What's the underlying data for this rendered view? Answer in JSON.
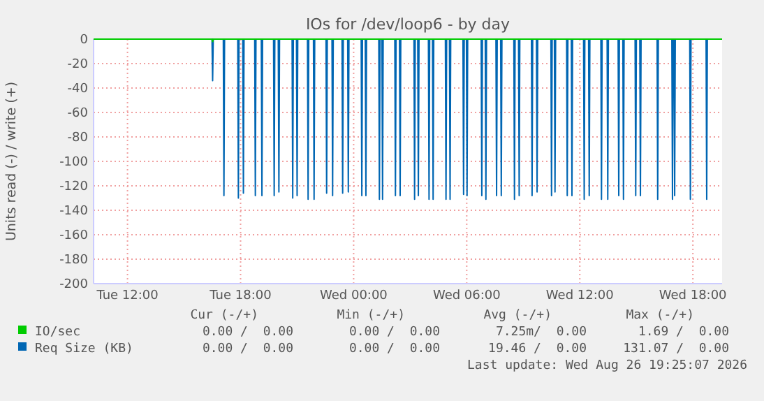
{
  "chart_data": {
    "type": "line",
    "title": "IOs for /dev/loop6 - by day",
    "ylabel": "Units read (-) / write (+)",
    "xlim": [
      "2026-08-25T10:12",
      "2026-08-26T19:33"
    ],
    "xticks": [
      {
        "value": "2026-08-25T12:00",
        "label": "Tue 12:00"
      },
      {
        "value": "2026-08-25T18:00",
        "label": "Tue 18:00"
      },
      {
        "value": "2026-08-26T00:00",
        "label": "Wed 00:00"
      },
      {
        "value": "2026-08-26T06:00",
        "label": "Wed 06:00"
      },
      {
        "value": "2026-08-26T12:00",
        "label": "Wed 12:00"
      },
      {
        "value": "2026-08-26T18:00",
        "label": "Wed 18:00"
      }
    ],
    "ylim": [
      -200,
      0
    ],
    "yticks": [
      -200,
      -180,
      -160,
      -140,
      -120,
      -100,
      -80,
      -60,
      -40,
      -20,
      0
    ],
    "grid": true,
    "legend": "bottom",
    "series": [
      {
        "name": "IO/sec",
        "color": "#00cc00",
        "x": [
          "2026-08-25T10:12",
          "2026-08-25T16:29",
          "2026-08-25T16:31",
          "2026-08-25T16:33",
          "2026-08-26T19:33"
        ],
        "values": [
          0,
          0,
          -2,
          0,
          0
        ]
      },
      {
        "name": "Req Size (KB)",
        "color": "#0066b3",
        "x": [
          "2026-08-25T10:12",
          "2026-08-25T16:29",
          "2026-08-25T16:31",
          "2026-08-25T16:33",
          "2026-08-25T17:05",
          "2026-08-25T17:07",
          "2026-08-25T17:09",
          "2026-08-25T17:51",
          "2026-08-25T17:53",
          "2026-08-25T17:55",
          "2026-08-25T18:07",
          "2026-08-25T18:09",
          "2026-08-25T18:11",
          "2026-08-25T18:45",
          "2026-08-25T18:47",
          "2026-08-25T18:49",
          "2026-08-25T19:06",
          "2026-08-25T19:08",
          "2026-08-25T19:10",
          "2026-08-25T19:45",
          "2026-08-25T19:47",
          "2026-08-25T19:49",
          "2026-08-25T20:00",
          "2026-08-25T20:02",
          "2026-08-25T20:04",
          "2026-08-25T20:44",
          "2026-08-25T20:46",
          "2026-08-25T20:48",
          "2026-08-25T20:58",
          "2026-08-25T21:00",
          "2026-08-25T21:02",
          "2026-08-25T21:33",
          "2026-08-25T21:35",
          "2026-08-25T21:37",
          "2026-08-25T21:52",
          "2026-08-25T21:54",
          "2026-08-25T21:56",
          "2026-08-25T22:32",
          "2026-08-25T22:34",
          "2026-08-25T22:36",
          "2026-08-25T22:51",
          "2026-08-25T22:53",
          "2026-08-25T22:55",
          "2026-08-25T23:23",
          "2026-08-25T23:25",
          "2026-08-25T23:27",
          "2026-08-25T23:41",
          "2026-08-25T23:43",
          "2026-08-25T23:45",
          "2026-08-26T00:24",
          "2026-08-26T00:26",
          "2026-08-26T00:28",
          "2026-08-26T00:37",
          "2026-08-26T00:39",
          "2026-08-26T00:41",
          "2026-08-26T01:20",
          "2026-08-26T01:22",
          "2026-08-26T01:24",
          "2026-08-26T01:30",
          "2026-08-26T01:32",
          "2026-08-26T01:34",
          "2026-08-26T02:11",
          "2026-08-26T02:13",
          "2026-08-26T02:15",
          "2026-08-26T02:26",
          "2026-08-26T02:28",
          "2026-08-26T02:30",
          "2026-08-26T03:12",
          "2026-08-26T03:14",
          "2026-08-26T03:16",
          "2026-08-26T03:24",
          "2026-08-26T03:26",
          "2026-08-26T03:28",
          "2026-08-26T03:58",
          "2026-08-26T04:00",
          "2026-08-26T04:02",
          "2026-08-26T04:11",
          "2026-08-26T04:13",
          "2026-08-26T04:15",
          "2026-08-26T04:52",
          "2026-08-26T04:54",
          "2026-08-26T04:56",
          "2026-08-26T05:05",
          "2026-08-26T05:07",
          "2026-08-26T05:09",
          "2026-08-26T05:48",
          "2026-08-26T05:50",
          "2026-08-26T05:52",
          "2026-08-26T05:59",
          "2026-08-26T06:01",
          "2026-08-26T06:03",
          "2026-08-26T06:46",
          "2026-08-26T06:48",
          "2026-08-26T06:50",
          "2026-08-26T06:59",
          "2026-08-26T07:01",
          "2026-08-26T07:03",
          "2026-08-26T07:33",
          "2026-08-26T07:35",
          "2026-08-26T07:37",
          "2026-08-26T07:48",
          "2026-08-26T07:50",
          "2026-08-26T07:52",
          "2026-08-26T08:30",
          "2026-08-26T08:32",
          "2026-08-26T08:34",
          "2026-08-26T08:45",
          "2026-08-26T08:47",
          "2026-08-26T08:49",
          "2026-08-26T09:26",
          "2026-08-26T09:28",
          "2026-08-26T09:30",
          "2026-08-26T09:42",
          "2026-08-26T09:44",
          "2026-08-26T09:46",
          "2026-08-26T10:28",
          "2026-08-26T10:30",
          "2026-08-26T10:32",
          "2026-08-26T10:39",
          "2026-08-26T10:41",
          "2026-08-26T10:43",
          "2026-08-26T11:18",
          "2026-08-26T11:20",
          "2026-08-26T11:22",
          "2026-08-26T11:33",
          "2026-08-26T11:35",
          "2026-08-26T11:37",
          "2026-08-26T12:12",
          "2026-08-26T12:14",
          "2026-08-26T12:16",
          "2026-08-26T12:28",
          "2026-08-26T12:30",
          "2026-08-26T12:32",
          "2026-08-26T13:07",
          "2026-08-26T13:09",
          "2026-08-26T13:11",
          "2026-08-26T13:27",
          "2026-08-26T13:29",
          "2026-08-26T13:31",
          "2026-08-26T14:02",
          "2026-08-26T14:04",
          "2026-08-26T14:06",
          "2026-08-26T14:17",
          "2026-08-26T14:19",
          "2026-08-26T14:21",
          "2026-08-26T14:56",
          "2026-08-26T14:58",
          "2026-08-26T15:00",
          "2026-08-26T15:11",
          "2026-08-26T15:13",
          "2026-08-26T15:15",
          "2026-08-26T16:06",
          "2026-08-26T16:08",
          "2026-08-26T16:10",
          "2026-08-26T16:53",
          "2026-08-26T16:55",
          "2026-08-26T16:57",
          "2026-08-26T17:00",
          "2026-08-26T17:02",
          "2026-08-26T17:04",
          "2026-08-26T17:50",
          "2026-08-26T17:52",
          "2026-08-26T17:54",
          "2026-08-26T18:42",
          "2026-08-26T18:44",
          "2026-08-26T18:46",
          "2026-08-26T19:33"
        ],
        "values": [
          0,
          0,
          -34,
          0,
          0,
          -128,
          0,
          0,
          -130,
          0,
          0,
          -126,
          0,
          0,
          -128,
          0,
          0,
          -128,
          0,
          0,
          -128,
          0,
          0,
          -125,
          0,
          0,
          -130,
          0,
          0,
          -128,
          0,
          0,
          -131,
          0,
          0,
          -131,
          0,
          0,
          -126,
          0,
          0,
          -128,
          0,
          0,
          -126,
          0,
          0,
          -125,
          0,
          0,
          -128,
          0,
          0,
          -128,
          0,
          0,
          -131,
          0,
          0,
          -131,
          0,
          0,
          -128,
          0,
          0,
          -128,
          0,
          0,
          -131,
          0,
          0,
          -128,
          0,
          0,
          -131,
          0,
          0,
          -131,
          0,
          0,
          -131,
          0,
          0,
          -131,
          0,
          0,
          -127,
          0,
          0,
          -128,
          0,
          0,
          -128,
          0,
          0,
          -131,
          0,
          0,
          -128,
          0,
          0,
          -128,
          0,
          0,
          -131,
          0,
          0,
          -128,
          0,
          0,
          -128,
          0,
          0,
          -125,
          0,
          0,
          -128,
          0,
          0,
          -125,
          0,
          0,
          -128,
          0,
          0,
          -128,
          0,
          0,
          -131,
          0,
          0,
          -128,
          0,
          0,
          -131,
          0,
          0,
          -131,
          0,
          0,
          -128,
          0,
          0,
          -131,
          0,
          0,
          -128,
          0,
          0,
          -128,
          0,
          0,
          -131,
          0,
          0,
          -131,
          0,
          0,
          -128,
          0,
          0,
          -131,
          0,
          0,
          -131,
          0,
          0
        ]
      }
    ],
    "annotations": [
      "Cur (-/+)",
      "Min (-/+)",
      "Avg (-/+)",
      "Max (-/+)",
      "0.00 /  0.00",
      "0.00 /  0.00",
      "7.25m/  0.00",
      "1.69 /  0.00",
      "0.00 /  0.00",
      "0.00 /  0.00",
      "19.46 /  0.00",
      "131.07 /  0.00",
      "Last update: Wed Aug 26 19:25:07 2026"
    ]
  }
}
